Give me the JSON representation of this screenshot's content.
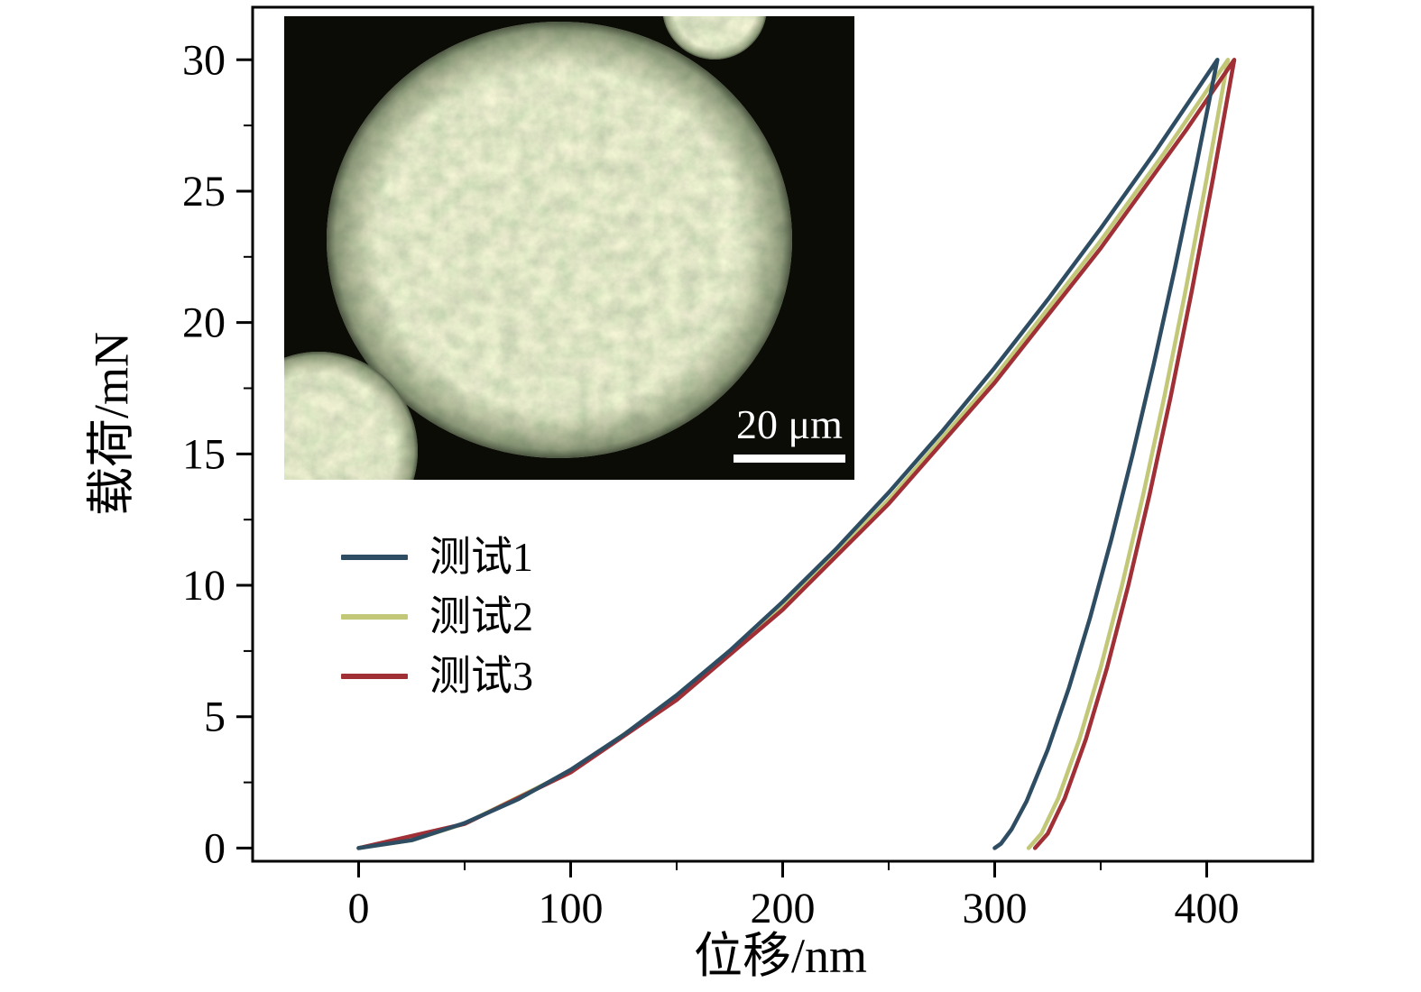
{
  "chart_data": {
    "type": "line",
    "title": "",
    "xlabel": "位移/nm",
    "ylabel": "载荷/mN",
    "xlim": [
      -50,
      450
    ],
    "ylim": [
      -0.5,
      32
    ],
    "x_ticks": [
      0,
      100,
      200,
      300,
      400
    ],
    "y_ticks": [
      0,
      5,
      10,
      15,
      20,
      25,
      30
    ],
    "x_minor_ticks": [
      50,
      150,
      250,
      350
    ],
    "y_minor_ticks": [
      2.5,
      7.5,
      12.5,
      17.5,
      22.5,
      27.5
    ],
    "grid": false,
    "legend_position": "inside-left-middle",
    "axis_color": "#000000",
    "series": [
      {
        "name": "测试1",
        "color": "#2e4d63",
        "points": [
          [
            0,
            0
          ],
          [
            25,
            0.3
          ],
          [
            50,
            0.95
          ],
          [
            75,
            1.85
          ],
          [
            100,
            2.98
          ],
          [
            125,
            4.31
          ],
          [
            150,
            5.82
          ],
          [
            175,
            7.51
          ],
          [
            200,
            9.37
          ],
          [
            225,
            11.37
          ],
          [
            250,
            13.53
          ],
          [
            275,
            15.84
          ],
          [
            300,
            18.28
          ],
          [
            325,
            20.87
          ],
          [
            350,
            23.58
          ],
          [
            375,
            26.42
          ],
          [
            405,
            30
          ],
          [
            395,
            25.95
          ],
          [
            385,
            22.08
          ],
          [
            375,
            18.42
          ],
          [
            365,
            14.97
          ],
          [
            355,
            11.75
          ],
          [
            345,
            8.78
          ],
          [
            335,
            6.1
          ],
          [
            325,
            3.75
          ],
          [
            315,
            1.78
          ],
          [
            308,
            0.72
          ],
          [
            303,
            0.17
          ],
          [
            300,
            0
          ]
        ]
      },
      {
        "name": "测试2",
        "color": "#c2c878",
        "points": [
          [
            0,
            0
          ],
          [
            25,
            0.3
          ],
          [
            50,
            0.93
          ],
          [
            100,
            2.92
          ],
          [
            150,
            5.71
          ],
          [
            200,
            9.18
          ],
          [
            250,
            13.26
          ],
          [
            300,
            17.92
          ],
          [
            350,
            23.11
          ],
          [
            380,
            26.46
          ],
          [
            410,
            30
          ],
          [
            400,
            25.49
          ],
          [
            390,
            21.21
          ],
          [
            380,
            17.17
          ],
          [
            370,
            13.43
          ],
          [
            360,
            9.98
          ],
          [
            350,
            6.87
          ],
          [
            340,
            4.15
          ],
          [
            330,
            1.9
          ],
          [
            322,
            0.55
          ],
          [
            316,
            0
          ]
        ]
      },
      {
        "name": "测试3",
        "color": "#a02f36",
        "points": [
          [
            0,
            0
          ],
          [
            50,
            0.92
          ],
          [
            100,
            2.88
          ],
          [
            150,
            5.64
          ],
          [
            200,
            9.07
          ],
          [
            250,
            13.1
          ],
          [
            300,
            17.71
          ],
          [
            350,
            22.83
          ],
          [
            390,
            27.29
          ],
          [
            413,
            30
          ],
          [
            403,
            25.49
          ],
          [
            393,
            21.21
          ],
          [
            383,
            17.17
          ],
          [
            373,
            13.43
          ],
          [
            363,
            9.98
          ],
          [
            353,
            6.87
          ],
          [
            343,
            4.15
          ],
          [
            333,
            1.9
          ],
          [
            325,
            0.55
          ],
          [
            319,
            0
          ]
        ]
      }
    ],
    "inset": {
      "description": "optical-micrograph-of-particle",
      "scale_label": "20 μm",
      "background": "#0b0c06",
      "particle_color": "#b9c48f"
    }
  }
}
